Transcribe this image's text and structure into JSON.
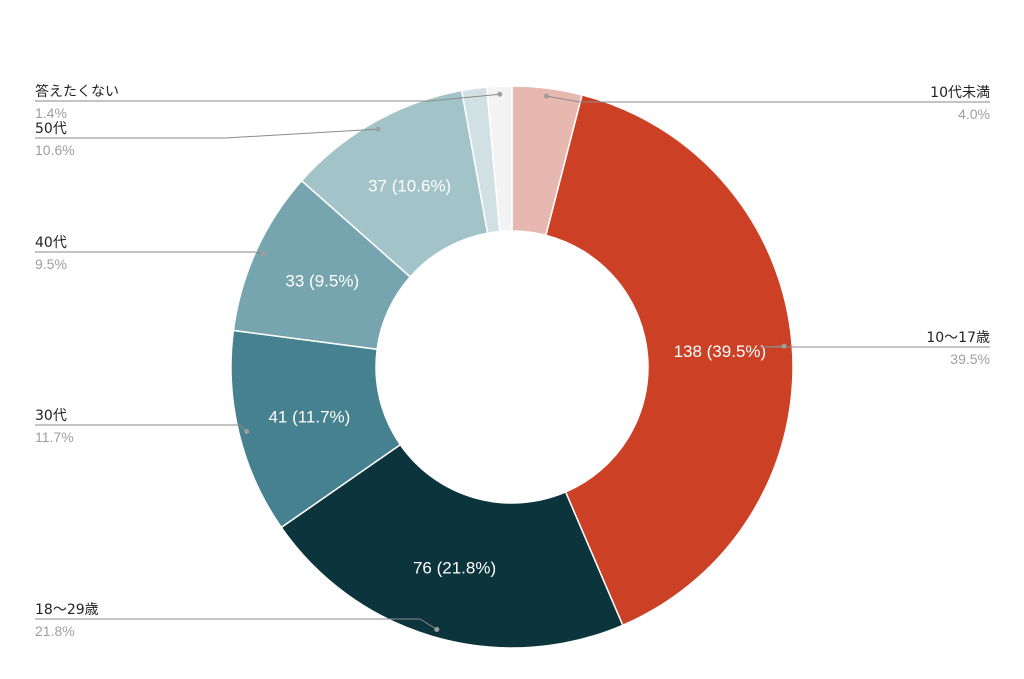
{
  "chart_data": {
    "type": "pie",
    "donut": true,
    "legend": "callouts",
    "slices": [
      {
        "label": "10代未満",
        "value": 14,
        "percent_label": "4.0%",
        "data_label": "",
        "color": "#e6b8b0"
      },
      {
        "label": "10〜17歳",
        "value": 138,
        "percent_label": "39.5%",
        "data_label": "138 (39.5%)",
        "color": "#cc4125"
      },
      {
        "label": "18〜29歳",
        "value": 76,
        "percent_label": "21.8%",
        "data_label": "76 (21.8%)",
        "color": "#0c343d"
      },
      {
        "label": "30代",
        "value": 41,
        "percent_label": "11.7%",
        "data_label": "41 (11.7%)",
        "color": "#45818e"
      },
      {
        "label": "40代",
        "value": 33,
        "percent_label": "9.5%",
        "data_label": "33 (9.5%)",
        "color": "#76a5af"
      },
      {
        "label": "50代",
        "value": 37,
        "percent_label": "10.6%",
        "data_label": "37 (10.6%)",
        "color": "#a2c4c9"
      },
      {
        "label": "",
        "value": 5,
        "percent_label": "",
        "data_label": "",
        "color": "#d0e0e3"
      },
      {
        "label": "答えたくない",
        "value": 5,
        "percent_label": "1.4%",
        "data_label": "",
        "color": "#f3f3f3"
      }
    ]
  }
}
